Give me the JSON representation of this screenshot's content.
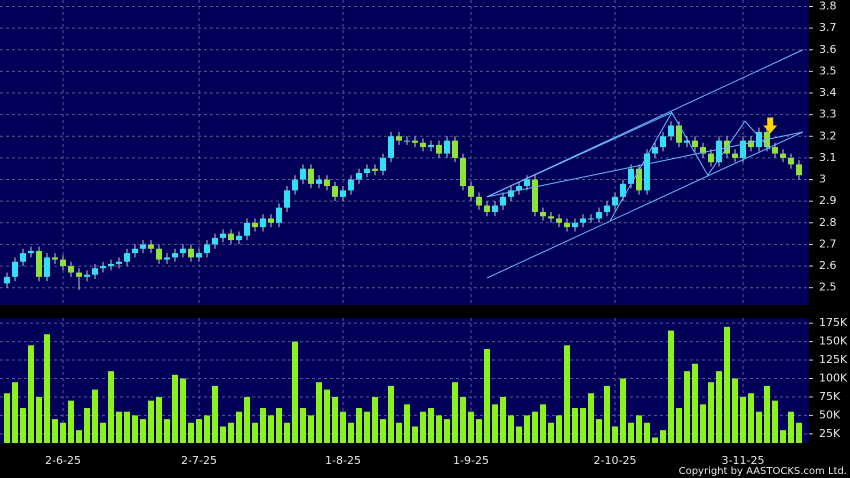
{
  "chart_data": {
    "type": "candlestick",
    "categories": [
      null,
      null,
      null,
      null,
      null,
      null,
      null,
      "2-6-25",
      null,
      null,
      null,
      null,
      null,
      null,
      null,
      null,
      null,
      null,
      null,
      null,
      null,
      null,
      null,
      null,
      "2-7-25",
      null,
      null,
      null,
      null,
      null,
      null,
      null,
      null,
      null,
      null,
      null,
      null,
      null,
      null,
      null,
      null,
      null,
      "1-8-25",
      null,
      null,
      null,
      null,
      null,
      null,
      null,
      null,
      null,
      null,
      null,
      null,
      null,
      null,
      null,
      "1-9-25",
      null,
      null,
      null,
      null,
      null,
      null,
      null,
      null,
      null,
      null,
      null,
      null,
      null,
      null,
      null,
      null,
      null,
      "2-10-25",
      null,
      null,
      null,
      null,
      null,
      null,
      null,
      null,
      null,
      null,
      null,
      null,
      null,
      null,
      null,
      "3-11-25",
      null,
      null,
      null,
      null,
      null,
      null,
      null
    ],
    "open": [
      2.52,
      2.55,
      2.62,
      2.66,
      2.67,
      2.55,
      2.64,
      2.63,
      2.6,
      2.57,
      2.55,
      2.56,
      2.59,
      2.6,
      2.61,
      2.62,
      2.66,
      2.68,
      2.7,
      2.68,
      2.63,
      2.64,
      2.66,
      2.68,
      2.64,
      2.66,
      2.7,
      2.73,
      2.75,
      2.72,
      2.74,
      2.8,
      2.78,
      2.82,
      2.8,
      2.87,
      2.95,
      3.0,
      3.05,
      2.98,
      3.0,
      2.97,
      2.92,
      2.95,
      3.0,
      3.03,
      3.05,
      3.04,
      3.1,
      3.2,
      3.18,
      3.18,
      3.17,
      3.15,
      3.16,
      3.12,
      3.18,
      3.1,
      2.97,
      2.92,
      2.88,
      2.85,
      2.88,
      2.92,
      2.95,
      2.97,
      3.0,
      2.85,
      2.83,
      2.82,
      2.8,
      2.78,
      2.8,
      2.82,
      2.82,
      2.85,
      2.88,
      2.92,
      2.98,
      3.05,
      2.95,
      3.12,
      3.15,
      3.2,
      3.25,
      3.17,
      3.18,
      3.15,
      3.12,
      3.08,
      3.18,
      3.12,
      3.1,
      3.18,
      3.15,
      3.22,
      3.15,
      3.12,
      3.1,
      3.07
    ],
    "high": [
      2.57,
      2.64,
      2.68,
      2.69,
      2.69,
      2.66,
      2.66,
      2.65,
      2.62,
      2.59,
      2.58,
      2.61,
      2.62,
      2.63,
      2.64,
      2.68,
      2.7,
      2.72,
      2.72,
      2.7,
      2.66,
      2.68,
      2.7,
      2.7,
      2.68,
      2.72,
      2.75,
      2.77,
      2.77,
      2.76,
      2.82,
      2.82,
      2.84,
      2.84,
      2.89,
      2.97,
      3.02,
      3.07,
      3.07,
      3.02,
      3.02,
      2.99,
      2.97,
      3.02,
      3.05,
      3.07,
      3.07,
      3.12,
      3.22,
      3.22,
      3.2,
      3.2,
      3.19,
      3.18,
      3.18,
      3.2,
      3.2,
      3.12,
      2.99,
      2.94,
      2.9,
      2.9,
      2.94,
      2.97,
      2.99,
      3.02,
      3.02,
      2.87,
      2.85,
      2.84,
      2.82,
      2.82,
      2.84,
      2.84,
      2.87,
      2.9,
      2.94,
      3.0,
      3.07,
      3.07,
      3.14,
      3.17,
      3.22,
      3.27,
      3.27,
      3.2,
      3.2,
      3.17,
      3.14,
      3.2,
      3.2,
      3.14,
      3.2,
      3.2,
      3.24,
      3.24,
      3.17,
      3.14,
      3.12,
      3.09
    ],
    "low": [
      2.5,
      2.53,
      2.6,
      2.64,
      2.53,
      2.53,
      2.61,
      2.58,
      2.55,
      2.49,
      2.53,
      2.54,
      2.57,
      2.58,
      2.59,
      2.6,
      2.64,
      2.66,
      2.66,
      2.61,
      2.61,
      2.62,
      2.64,
      2.62,
      2.62,
      2.64,
      2.68,
      2.71,
      2.7,
      2.7,
      2.72,
      2.76,
      2.76,
      2.78,
      2.78,
      2.85,
      2.93,
      2.98,
      2.96,
      2.96,
      2.95,
      2.9,
      2.9,
      2.93,
      2.98,
      3.01,
      3.02,
      3.02,
      3.08,
      3.16,
      3.16,
      3.15,
      3.13,
      3.13,
      3.1,
      3.1,
      3.08,
      2.95,
      2.9,
      2.86,
      2.83,
      2.83,
      2.86,
      2.9,
      2.93,
      2.95,
      2.83,
      2.81,
      2.8,
      2.78,
      2.76,
      2.76,
      2.78,
      2.8,
      2.8,
      2.83,
      2.86,
      2.9,
      2.96,
      2.93,
      2.93,
      3.1,
      3.13,
      3.18,
      3.15,
      3.15,
      3.13,
      3.1,
      3.06,
      3.06,
      3.1,
      3.08,
      3.08,
      3.13,
      3.13,
      3.13,
      3.1,
      3.08,
      3.05,
      3.0
    ],
    "close": [
      2.55,
      2.62,
      2.66,
      2.67,
      2.55,
      2.64,
      2.63,
      2.6,
      2.57,
      2.55,
      2.56,
      2.59,
      2.6,
      2.61,
      2.62,
      2.66,
      2.68,
      2.7,
      2.68,
      2.63,
      2.64,
      2.66,
      2.68,
      2.64,
      2.66,
      2.7,
      2.73,
      2.75,
      2.72,
      2.74,
      2.8,
      2.78,
      2.82,
      2.8,
      2.87,
      2.95,
      3.0,
      3.05,
      2.98,
      3.0,
      2.97,
      2.92,
      2.95,
      3.0,
      3.03,
      3.05,
      3.04,
      3.1,
      3.2,
      3.18,
      3.18,
      3.17,
      3.15,
      3.16,
      3.12,
      3.18,
      3.1,
      2.97,
      2.92,
      2.88,
      2.85,
      2.88,
      2.92,
      2.95,
      2.97,
      3.0,
      2.85,
      2.83,
      2.82,
      2.8,
      2.78,
      2.8,
      2.82,
      2.82,
      2.85,
      2.88,
      2.92,
      2.98,
      3.05,
      2.95,
      3.12,
      3.15,
      3.2,
      3.25,
      3.17,
      3.18,
      3.15,
      3.12,
      3.08,
      3.18,
      3.12,
      3.1,
      3.18,
      3.15,
      3.22,
      3.15,
      3.12,
      3.1,
      3.07,
      3.02
    ],
    "up_color": "#33dff5",
    "down_color": "#8ee23a",
    "ylim": [
      2.42,
      3.83
    ],
    "yticks": [
      2.5,
      2.6,
      2.7,
      2.8,
      2.9,
      3,
      3.1,
      3.2,
      3.3,
      3.4,
      3.5,
      3.6,
      3.7,
      3.8
    ],
    "grid": true,
    "lines": [
      {
        "color": "#6cb8ff",
        "x": [
          60,
          99.5
        ],
        "y": [
          2.92,
          3.6
        ]
      },
      {
        "color": "#6cb8ff",
        "x": [
          60,
          99.5
        ],
        "y": [
          2.545,
          3.22
        ]
      },
      {
        "color": "#6cb8ff",
        "x": [
          60,
          99.5
        ],
        "y": [
          2.92,
          3.22
        ]
      },
      {
        "color": "#6cb8ff",
        "x": [
          60,
          83.1
        ],
        "y": [
          2.92,
          3.31
        ]
      },
      {
        "color": "#6cb8ff",
        "x": [
          75.4,
          83.1,
          87.6,
          92.25,
          95.4
        ],
        "y": [
          2.81,
          3.31,
          3.02,
          3.27,
          3.14
        ]
      }
    ],
    "arrow": {
      "x": 95.4,
      "y": 3.25,
      "color": "#ffd400"
    },
    "volume": {
      "type": "bar",
      "color": "#8af21e",
      "values": [
        80000,
        95000,
        60000,
        145000,
        75000,
        160000,
        45000,
        40000,
        70000,
        30000,
        60000,
        85000,
        40000,
        110000,
        55000,
        55000,
        50000,
        45000,
        70000,
        75000,
        45000,
        105000,
        100000,
        40000,
        45000,
        50000,
        90000,
        35000,
        40000,
        55000,
        75000,
        40000,
        60000,
        50000,
        60000,
        40000,
        150000,
        60000,
        50000,
        95000,
        85000,
        75000,
        55000,
        40000,
        60000,
        55000,
        75000,
        45000,
        90000,
        40000,
        65000,
        35000,
        55000,
        60000,
        50000,
        45000,
        95000,
        75000,
        55000,
        45000,
        140000,
        65000,
        75000,
        50000,
        35000,
        50000,
        55000,
        65000,
        40000,
        50000,
        145000,
        60000,
        60000,
        80000,
        45000,
        90000,
        35000,
        100000,
        40000,
        50000,
        40000,
        20000,
        30000,
        165000,
        60000,
        110000,
        120000,
        65000,
        95000,
        110000,
        170000,
        100000,
        75000,
        80000,
        55000,
        90000,
        70000,
        30000,
        55000,
        40000
      ],
      "ylim": [
        12600,
        182000
      ],
      "yticks": [
        {
          "value": 25000,
          "label": "25K"
        },
        {
          "value": 50000,
          "label": "50K"
        },
        {
          "value": 75000,
          "label": "75K"
        },
        {
          "value": 100000,
          "label": "100K"
        },
        {
          "value": 125000,
          "label": "125K"
        },
        {
          "value": 150000,
          "label": "150K"
        },
        {
          "value": 175000,
          "label": "175K"
        }
      ]
    },
    "copyright": "Copyright by AASTOCKS.com Ltd."
  }
}
